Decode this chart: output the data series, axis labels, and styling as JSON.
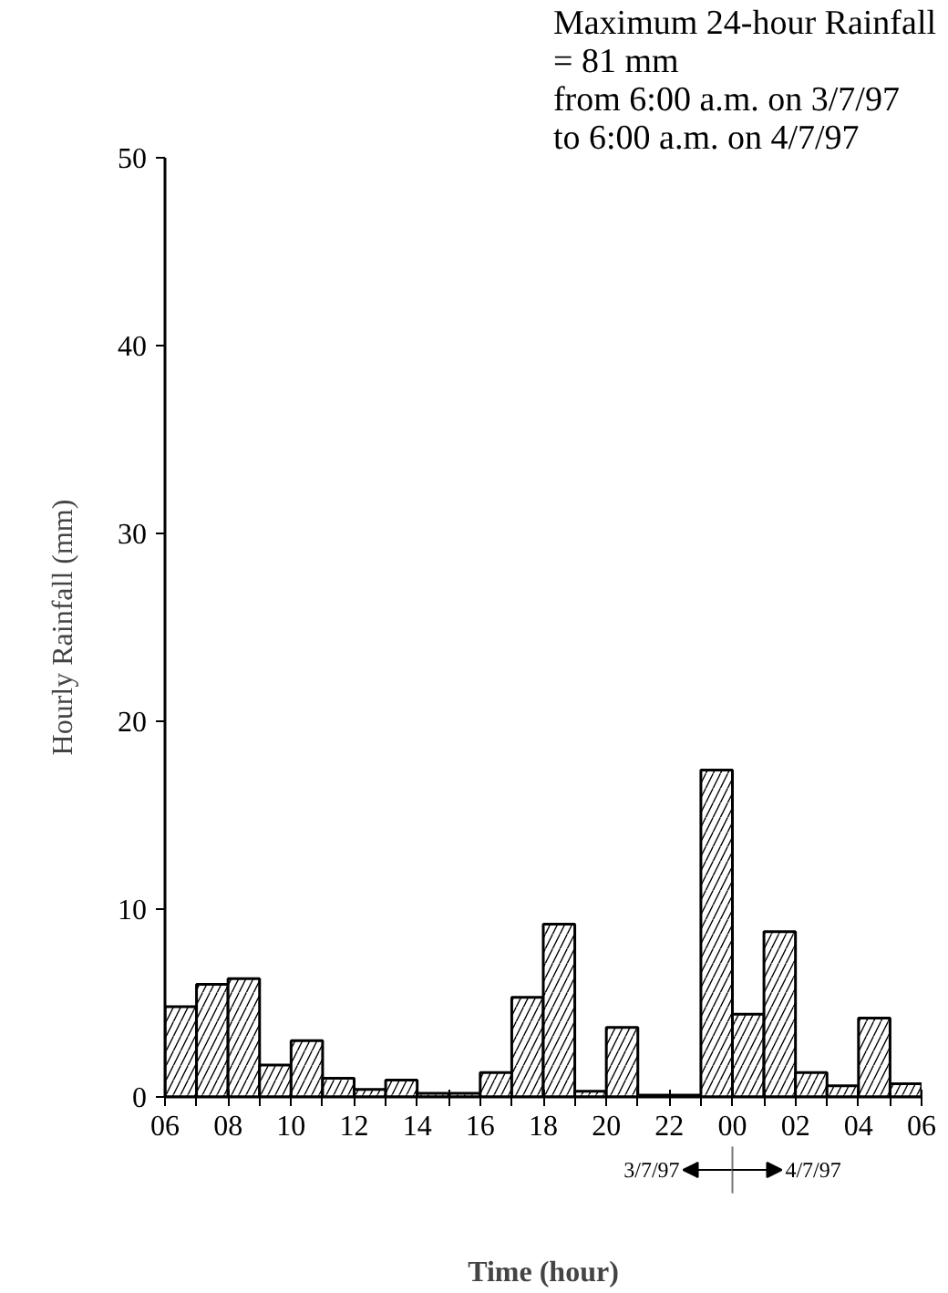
{
  "chart_data": {
    "type": "histogram",
    "xlabel": "Time (hour)",
    "ylabel": "Hourly Rainfall (mm)",
    "annotations": [
      "Maximum 24-hour Rainfall\n= 81 mm\nfrom 6:00 a.m. on 3/7/97\nto 6:00 a.m. on 4/7/97",
      "3/7/97",
      "4/7/97"
    ],
    "bins": [
      6,
      7,
      8,
      9,
      10,
      11,
      12,
      13,
      14,
      15,
      16,
      17,
      18,
      19,
      20,
      21,
      22,
      23,
      24,
      25,
      26,
      27,
      28,
      29,
      30
    ],
    "values": [
      4.8,
      6.0,
      6.3,
      1.7,
      3.0,
      1.0,
      0.4,
      0.9,
      0.2,
      0.2,
      1.3,
      5.3,
      9.2,
      0.3,
      3.7,
      0.1,
      0.1,
      17.4,
      4.4,
      8.8,
      1.3,
      0.6,
      4.2,
      0.7
    ],
    "color": "#000000",
    "xlim": [
      6,
      30
    ],
    "ylim": [
      0,
      50
    ],
    "xticks": [
      {
        "value": 6,
        "label": "06"
      },
      {
        "value": 7,
        "label": null
      },
      {
        "value": 8,
        "label": "08"
      },
      {
        "value": 9,
        "label": null
      },
      {
        "value": 10,
        "label": "10"
      },
      {
        "value": 11,
        "label": null
      },
      {
        "value": 12,
        "label": "12"
      },
      {
        "value": 13,
        "label": null
      },
      {
        "value": 14,
        "label": "14"
      },
      {
        "value": 15,
        "label": null
      },
      {
        "value": 16,
        "label": "16"
      },
      {
        "value": 17,
        "label": null
      },
      {
        "value": 18,
        "label": "18"
      },
      {
        "value": 19,
        "label": null
      },
      {
        "value": 20,
        "label": "20"
      },
      {
        "value": 21,
        "label": null
      },
      {
        "value": 22,
        "label": "22"
      },
      {
        "value": 23,
        "label": null
      },
      {
        "value": 24,
        "label": "00"
      },
      {
        "value": 25,
        "label": null
      },
      {
        "value": 26,
        "label": "02"
      },
      {
        "value": 27,
        "label": null
      },
      {
        "value": 28,
        "label": "04"
      },
      {
        "value": 29,
        "label": null
      },
      {
        "value": 30,
        "label": "06"
      }
    ],
    "yticks": [
      0,
      10,
      20,
      30,
      40,
      50
    ],
    "grid": false
  }
}
